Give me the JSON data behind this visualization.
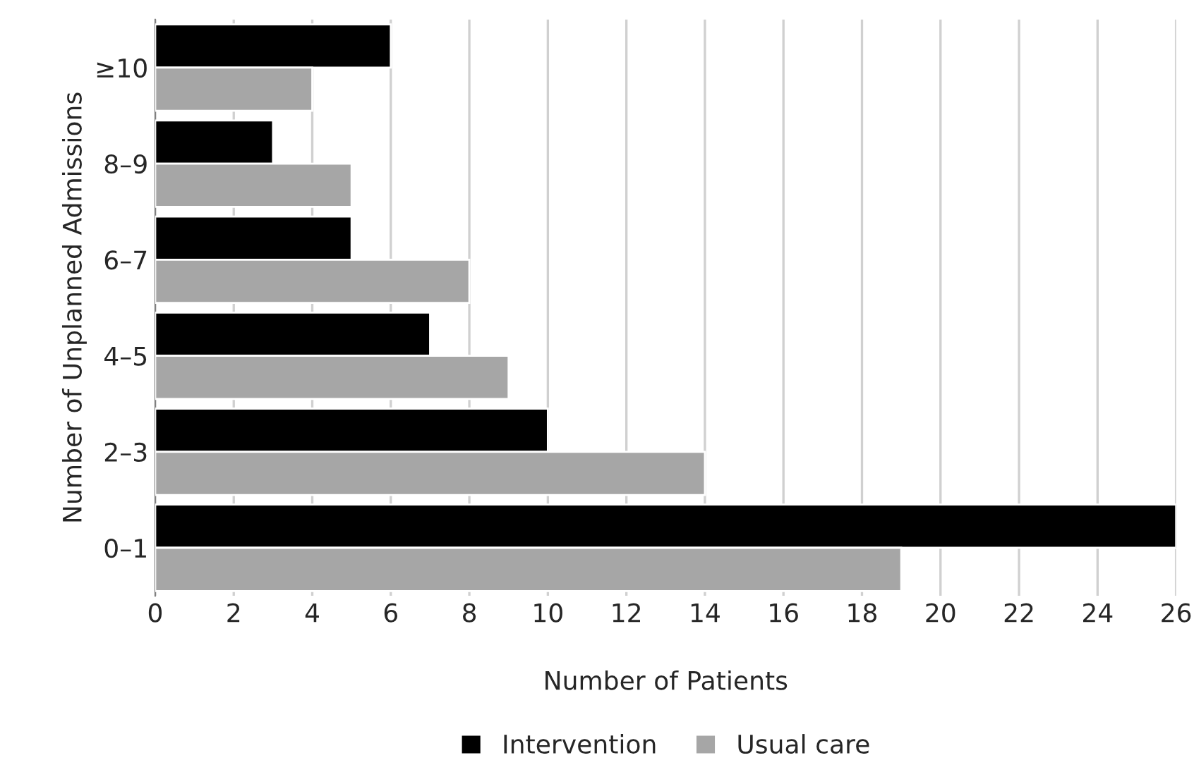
{
  "chart_data": {
    "type": "bar",
    "orientation": "horizontal",
    "xlabel": "Number of Patients",
    "ylabel": "Number of Unplanned Admissions",
    "categories": [
      "≥10",
      "8–9",
      "6–7",
      "4–5",
      "2–3",
      "0–1"
    ],
    "series": [
      {
        "name": "Intervention",
        "color": "#000000",
        "values": [
          6,
          3,
          5,
          7,
          10,
          26
        ]
      },
      {
        "name": "Usual care",
        "color": "#a6a6a6",
        "values": [
          4,
          5,
          8,
          9,
          14,
          19
        ]
      }
    ],
    "xlim": [
      0,
      26
    ],
    "xticks": [
      0,
      2,
      4,
      6,
      8,
      10,
      12,
      14,
      16,
      18,
      20,
      22,
      24,
      26
    ],
    "grid": "x",
    "legend": "bottom"
  }
}
